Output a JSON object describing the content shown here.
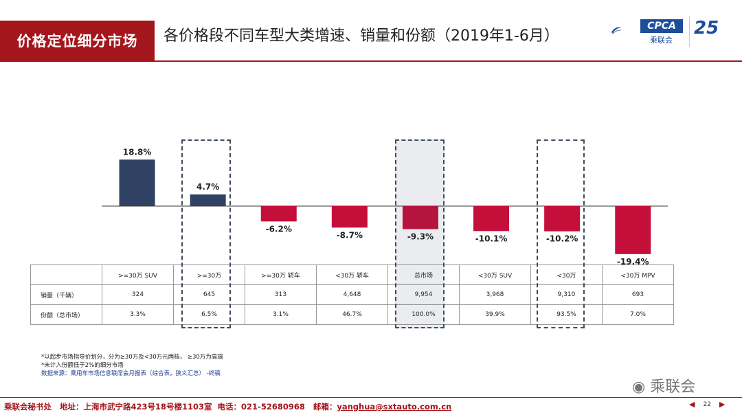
{
  "header": {
    "section_title": "价格定位细分市场",
    "main_title": "各价格段不同车型大类增速、销量和份额（2019年1-6月）",
    "logo_text": "CPCA",
    "logo_sub": "乘联会",
    "anniversary": "25"
  },
  "chart_data": {
    "type": "bar",
    "categories": [
      ">=30万 SUV",
      ">=30万",
      ">=30万 轿车",
      "<30万 轿车",
      "总市场",
      "<30万 SUV",
      "<30万",
      "<30万 MPV"
    ],
    "values": [
      18.8,
      4.7,
      -6.2,
      -8.7,
      -9.3,
      -10.1,
      -10.2,
      -19.4
    ],
    "value_labels": [
      "18.8%",
      "4.7%",
      "-6.2%",
      "-8.7%",
      "-9.3%",
      "-10.1%",
      "-10.2%",
      "-19.4%"
    ],
    "highlighted": [
      ">=30万",
      "总市场",
      "<30万"
    ],
    "positive_color": "#2f4263",
    "negative_color": "#c40f3a",
    "title": "",
    "xlabel": "",
    "ylabel": "",
    "grid": false
  },
  "table": {
    "header": [
      ">=30万 SUV",
      ">=30万",
      ">=30万 轿车",
      "<30万 轿车",
      "总市场",
      "<30万 SUV",
      "<30万",
      "<30万 MPV"
    ],
    "rows": [
      {
        "label": "销量（千辆）",
        "values": [
          "324",
          "645",
          "313",
          "4,648",
          "9,954",
          "3,968",
          "9,310",
          "693"
        ]
      },
      {
        "label": "份额（总市场）",
        "values": [
          "3.3%",
          "6.5%",
          "3.1%",
          "46.7%",
          "100.0%",
          "39.9%",
          "93.5%",
          "7.0%"
        ]
      }
    ]
  },
  "notes": {
    "line1": "*以起步市场指导价划分，分为≥30万及<30万元两档，  ≥30万为高端",
    "line2": "*未计入份额低于2%的细分市场",
    "source": "数据来源：乘用车市场信息联席会月报表（综合表，狭义汇总）  -终稿"
  },
  "watermark": "乘联会",
  "footer": {
    "org": "乘联会秘书处",
    "address": "地址：上海市武宁路423号18号楼1103室",
    "phone": "电话：021-52680968",
    "email_label": "邮箱：",
    "email": "yanghua@sxtauto.com.cn",
    "page": "22"
  }
}
